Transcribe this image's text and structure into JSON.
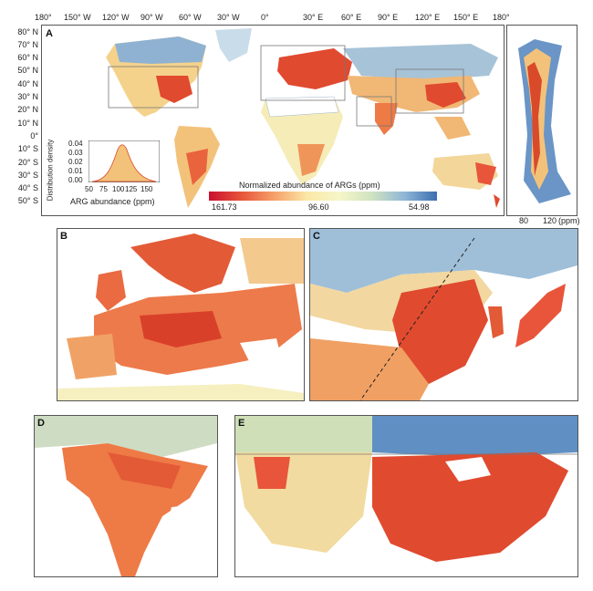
{
  "panel_labels": {
    "a": "A",
    "b": "B",
    "c": "C",
    "d": "D",
    "e": "E"
  },
  "lon_ticks": [
    "180°",
    "150° W",
    "120° W",
    "90° W",
    "60° W",
    "30° W",
    "0°",
    "30° E",
    "60° E",
    "90° E",
    "120° E",
    "150° E",
    "180°"
  ],
  "lat_ticks": [
    "80° N",
    "70° N",
    "60° N",
    "50° N",
    "40° N",
    "30° N",
    "20° N",
    "10° N",
    "0°",
    "10° S",
    "20° S",
    "30° S",
    "40° S",
    "50° S"
  ],
  "legend": {
    "title": "Normalized abundance of ARGs (ppm)",
    "max": "161.73",
    "mid": "96.60",
    "min": "54.98",
    "colors": [
      "#c8102e",
      "#e8553a",
      "#f5a06a",
      "#fbe7a6",
      "#f6f6c9",
      "#cfe3c0",
      "#8fb6d6",
      "#3b6fb0"
    ]
  },
  "density_inset": {
    "ylabel": "Distribution density",
    "xlabel": "ARG abundance (ppm)",
    "yticks": [
      "0.04",
      "0.03",
      "0.02",
      "0.01",
      "0.00"
    ],
    "xticks": [
      "50",
      "75",
      "100",
      "125",
      "150"
    ]
  },
  "profile": {
    "xticks": [
      "80",
      "120"
    ],
    "unit": "(ppm)"
  },
  "colors": {
    "land_high": "#e04a2f",
    "land_mid": "#f3c27a",
    "land_low": "#e9efb8",
    "cold": "#5b86be",
    "border": "#4a7fb0",
    "no_data": "#ffffff"
  }
}
